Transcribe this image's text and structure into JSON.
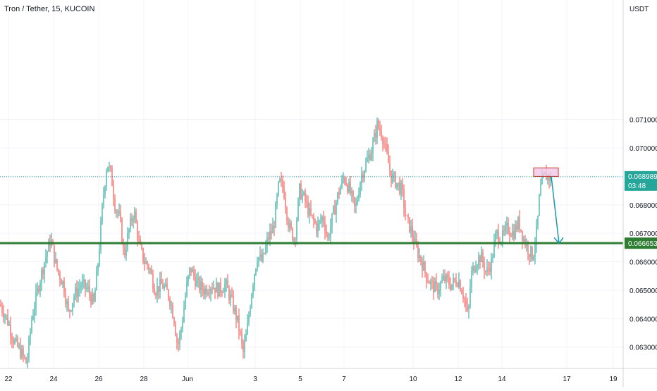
{
  "chart_data": {
    "type": "candlestick",
    "title": "Tron / Tether, 15, KUCOIN",
    "currency_label": "USDT",
    "ylim": [
      0.06225,
      0.0752
    ],
    "y_ticks": [
      "0.063000",
      "0.064000",
      "0.065000",
      "0.066000",
      "0.067000",
      "0.068000",
      "0.069000",
      "0.070000",
      "0.071000"
    ],
    "x_ticks": [
      "22",
      "24",
      "26",
      "28",
      "Jun",
      "3",
      "5",
      "7",
      "10",
      "12",
      "14",
      "17",
      "19"
    ],
    "grid": true,
    "colors": {
      "up": "#26a69a",
      "down": "#ef5350",
      "support": "#2e7d32",
      "arrow": "#2196a8",
      "zone_fill": "#f2c6e6",
      "zone_border": "#c0392b"
    },
    "price_path": [
      [
        0,
        0.0645
      ],
      [
        10,
        0.064
      ],
      [
        20,
        0.0632
      ],
      [
        30,
        0.0628
      ],
      [
        38,
        0.0624
      ],
      [
        45,
        0.064
      ],
      [
        55,
        0.0652
      ],
      [
        65,
        0.0662
      ],
      [
        72,
        0.0668
      ],
      [
        80,
        0.0658
      ],
      [
        90,
        0.0652
      ],
      [
        97,
        0.0642
      ],
      [
        105,
        0.0648
      ],
      [
        115,
        0.0652
      ],
      [
        125,
        0.065
      ],
      [
        133,
        0.0645
      ],
      [
        140,
        0.0662
      ],
      [
        146,
        0.0682
      ],
      [
        152,
        0.0695
      ],
      [
        158,
        0.069
      ],
      [
        163,
        0.068
      ],
      [
        170,
        0.0675
      ],
      [
        176,
        0.0662
      ],
      [
        182,
        0.067
      ],
      [
        190,
        0.0678
      ],
      [
        198,
        0.0665
      ],
      [
        205,
        0.066
      ],
      [
        212,
        0.0658
      ],
      [
        220,
        0.065
      ],
      [
        230,
        0.0652
      ],
      [
        240,
        0.0648
      ],
      [
        247,
        0.064
      ],
      [
        252,
        0.063
      ],
      [
        258,
        0.0638
      ],
      [
        264,
        0.065
      ],
      [
        270,
        0.0658
      ],
      [
        280,
        0.0652
      ],
      [
        290,
        0.065
      ],
      [
        300,
        0.0652
      ],
      [
        310,
        0.065
      ],
      [
        320,
        0.0652
      ],
      [
        330,
        0.0645
      ],
      [
        338,
        0.0638
      ],
      [
        345,
        0.0628
      ],
      [
        350,
        0.0635
      ],
      [
        358,
        0.0652
      ],
      [
        365,
        0.0662
      ],
      [
        372,
        0.066
      ],
      [
        380,
        0.0668
      ],
      [
        388,
        0.0672
      ],
      [
        396,
        0.0688
      ],
      [
        402,
        0.0686
      ],
      [
        410,
        0.0672
      ],
      [
        418,
        0.0668
      ],
      [
        425,
        0.0685
      ],
      [
        432,
        0.0682
      ],
      [
        440,
        0.0676
      ],
      [
        450,
        0.0672
      ],
      [
        458,
        0.0676
      ],
      [
        465,
        0.0668
      ],
      [
        472,
        0.0676
      ],
      [
        480,
        0.0684
      ],
      [
        488,
        0.069
      ],
      [
        496,
        0.0685
      ],
      [
        504,
        0.0678
      ],
      [
        512,
        0.069
      ],
      [
        520,
        0.0695
      ],
      [
        528,
        0.07
      ],
      [
        535,
        0.0708
      ],
      [
        542,
        0.0705
      ],
      [
        548,
        0.0698
      ],
      [
        555,
        0.069
      ],
      [
        562,
        0.0688
      ],
      [
        570,
        0.0685
      ],
      [
        576,
        0.0675
      ],
      [
        582,
        0.0672
      ],
      [
        590,
        0.0665
      ],
      [
        598,
        0.066
      ],
      [
        605,
        0.0655
      ],
      [
        612,
        0.0652
      ],
      [
        620,
        0.065
      ],
      [
        630,
        0.0654
      ],
      [
        640,
        0.0652
      ],
      [
        650,
        0.0654
      ],
      [
        658,
        0.0648
      ],
      [
        664,
        0.064
      ],
      [
        668,
        0.0655
      ],
      [
        675,
        0.066
      ],
      [
        682,
        0.0662
      ],
      [
        690,
        0.0656
      ],
      [
        697,
        0.066
      ],
      [
        704,
        0.067
      ],
      [
        712,
        0.0668
      ],
      [
        720,
        0.0672
      ],
      [
        728,
        0.067
      ],
      [
        736,
        0.0674
      ],
      [
        743,
        0.0668
      ],
      [
        750,
        0.0664
      ],
      [
        756,
        0.0662
      ],
      [
        762,
        0.0672
      ],
      [
        766,
        0.0685
      ],
      [
        772,
        0.069
      ],
      [
        778,
        0.069
      ],
      [
        782,
        0.0689
      ]
    ],
    "support_level": 0.066653,
    "support_label": "0.066653",
    "last_price": 0.068989,
    "last_price_label": "0.068989",
    "countdown": "03:48",
    "sell_zone": {
      "top": 0.0693,
      "bottom": 0.069,
      "x_start_tick": "15",
      "x_end_tick": "16"
    },
    "forecast_arrow": {
      "from": 0.069,
      "to": 0.06665
    }
  }
}
